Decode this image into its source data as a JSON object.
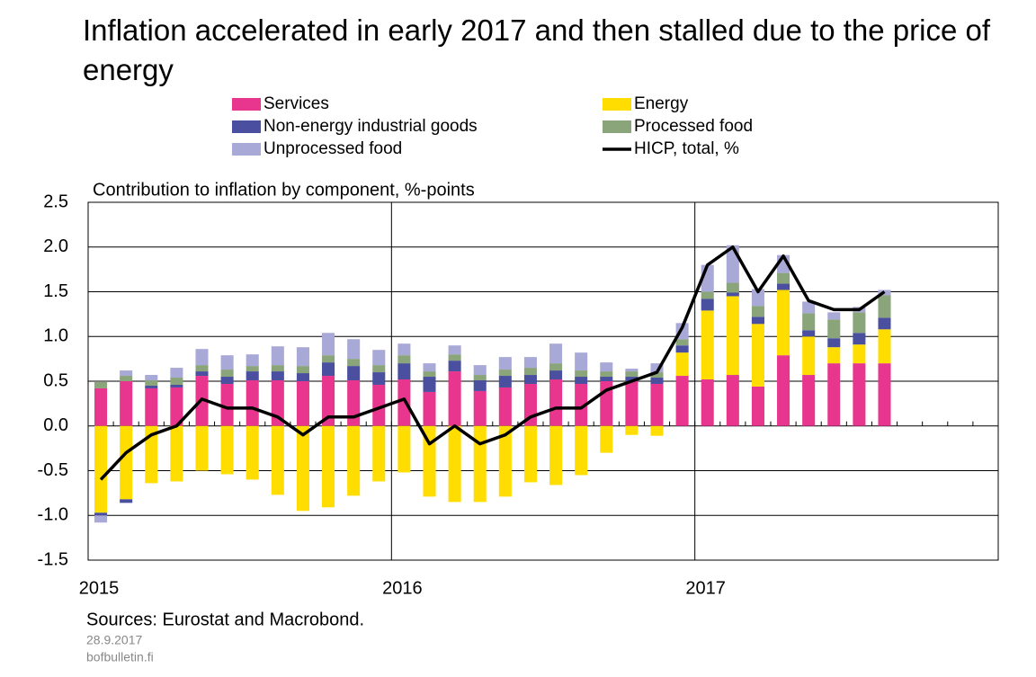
{
  "chart_data": {
    "type": "stacked-bar-line",
    "title": "Inflation accelerated in early 2017 and then stalled due to the price of energy",
    "subtitle": "Contribution to inflation by component, %-points",
    "source": "Sources: Eurostat and Macrobond.",
    "date": "28.9.2017",
    "site": "bofbulletin.fi",
    "categories": [
      "2015",
      null,
      null,
      null,
      null,
      null,
      null,
      null,
      null,
      null,
      null,
      null,
      "2016",
      null,
      null,
      null,
      null,
      null,
      null,
      null,
      null,
      null,
      null,
      null,
      "2017",
      null,
      null,
      null,
      null,
      null,
      null,
      null,
      null,
      null,
      null,
      null
    ],
    "ylim": [
      -1.5,
      2.5
    ],
    "yticks": [
      2.5,
      {
        "value": 2,
        "label": "2.0"
      },
      1.5,
      {
        "value": 1,
        "label": "1.0"
      },
      0.5,
      {
        "value": 0,
        "label": "0.0"
      },
      -0.5,
      {
        "value": -1,
        "label": "-1.0"
      },
      -1.5
    ],
    "grid": true,
    "series": [
      {
        "name": "Services",
        "color": "#e8368f",
        "kind": "bar",
        "values": [
          0.42,
          0.5,
          0.42,
          0.43,
          0.56,
          0.47,
          0.51,
          0.51,
          0.5,
          0.56,
          0.51,
          0.46,
          0.52,
          0.38,
          0.61,
          0.39,
          0.43,
          0.47,
          0.52,
          0.47,
          0.5,
          0.5,
          0.47,
          0.56,
          0.52,
          0.57,
          0.44,
          0.79,
          0.57,
          0.7,
          0.7,
          0.7,
          null,
          null,
          null,
          null
        ]
      },
      {
        "name": "Energy",
        "color": "#ffdd00",
        "kind": "bar",
        "values": [
          -0.97,
          -0.82,
          -0.64,
          -0.62,
          -0.5,
          -0.54,
          -0.6,
          -0.77,
          -0.95,
          -0.91,
          -0.78,
          -0.62,
          -0.52,
          -0.79,
          -0.85,
          -0.85,
          -0.79,
          -0.63,
          -0.66,
          -0.55,
          -0.3,
          -0.1,
          -0.11,
          0.26,
          0.77,
          0.88,
          0.7,
          0.73,
          0.43,
          0.18,
          0.21,
          0.38,
          null,
          null,
          null,
          null
        ]
      },
      {
        "name": "Non-energy industrial goods",
        "color": "#4a4f9f",
        "kind": "bar",
        "values": [
          -0.03,
          -0.04,
          0.03,
          0.03,
          0.05,
          0.08,
          0.1,
          0.1,
          0.09,
          0.15,
          0.16,
          0.14,
          0.18,
          0.17,
          0.12,
          0.12,
          0.13,
          0.1,
          0.1,
          0.08,
          0.05,
          0.05,
          0.07,
          0.08,
          0.13,
          0.04,
          0.08,
          0.07,
          0.07,
          0.1,
          0.13,
          0.13,
          null,
          null,
          null,
          null
        ]
      },
      {
        "name": "Processed food",
        "color": "#8aa57a",
        "kind": "bar",
        "values": [
          0.07,
          0.06,
          0.06,
          0.08,
          0.07,
          0.08,
          0.06,
          0.07,
          0.08,
          0.08,
          0.08,
          0.08,
          0.09,
          0.06,
          0.07,
          0.06,
          0.07,
          0.08,
          0.08,
          0.07,
          0.06,
          0.06,
          0.06,
          0.07,
          0.08,
          0.11,
          0.12,
          0.12,
          0.19,
          0.21,
          0.23,
          0.25,
          null,
          null,
          null,
          null
        ]
      },
      {
        "name": "Unprocessed food",
        "color": "#a9a9d8",
        "kind": "bar",
        "values": [
          -0.08,
          0.06,
          0.06,
          0.11,
          0.18,
          0.16,
          0.13,
          0.21,
          0.21,
          0.25,
          0.22,
          0.17,
          0.13,
          0.09,
          0.1,
          0.11,
          0.14,
          0.12,
          0.22,
          0.2,
          0.1,
          0.03,
          0.1,
          0.18,
          0.3,
          0.42,
          0.19,
          0.2,
          0.13,
          0.08,
          0.06,
          0.06,
          null,
          null,
          null,
          null
        ]
      },
      {
        "name": "HICP, total, %",
        "color": "#000000",
        "kind": "line",
        "values": [
          -0.6,
          -0.3,
          -0.1,
          0.0,
          0.3,
          0.2,
          0.2,
          0.1,
          -0.1,
          0.1,
          0.1,
          0.2,
          0.3,
          -0.2,
          0.0,
          -0.2,
          -0.1,
          0.1,
          0.2,
          0.2,
          0.4,
          0.5,
          0.6,
          1.1,
          1.8,
          2.0,
          1.5,
          1.9,
          1.4,
          1.3,
          1.3,
          1.5,
          null,
          null,
          null,
          null
        ]
      }
    ]
  }
}
